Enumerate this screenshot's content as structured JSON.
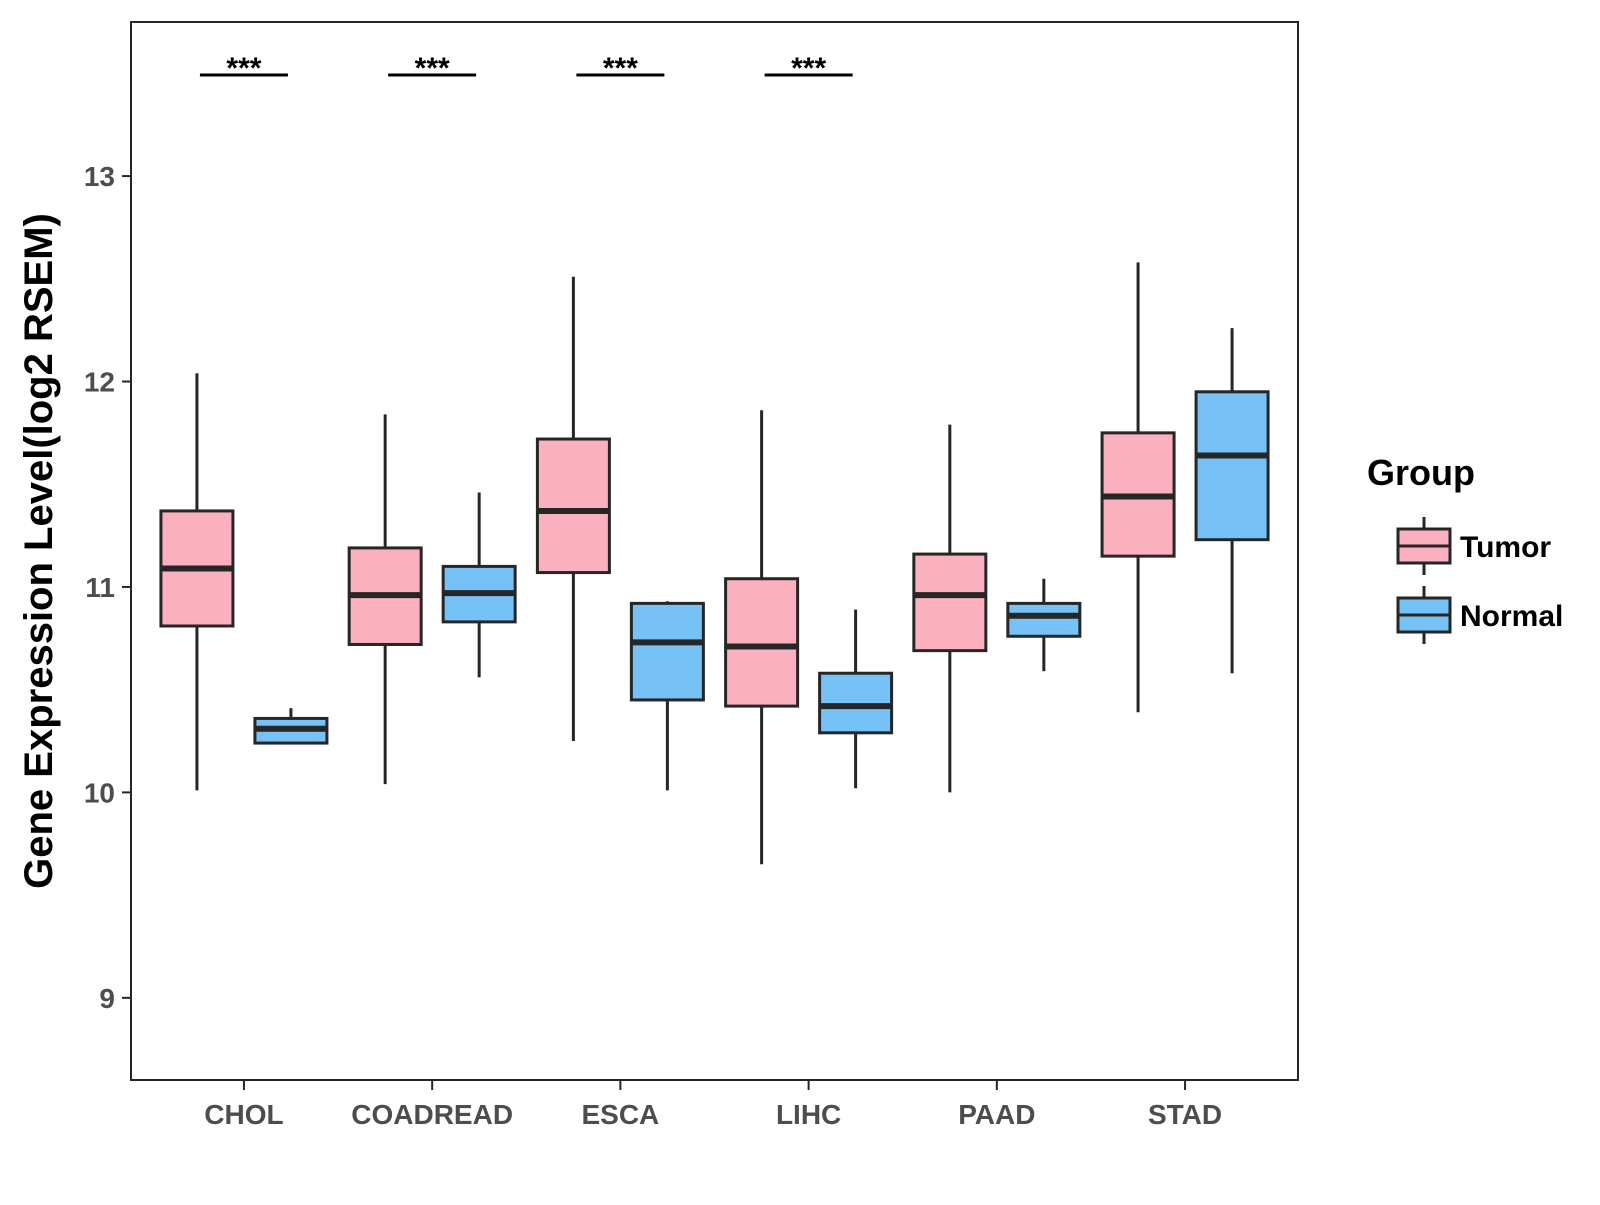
{
  "chart_data": {
    "type": "boxplot",
    "title": "",
    "xlabel": "",
    "ylabel": "Gene Expression Level(log2 RSEM)",
    "ylim": [
      8.6,
      13.75
    ],
    "yticks": [
      9,
      10,
      11,
      12,
      13
    ],
    "categories": [
      "CHOL",
      "COADREAD",
      "ESCA",
      "LIHC",
      "PAAD",
      "STAD"
    ],
    "legend": {
      "title": "Group",
      "position": "right"
    },
    "colors": {
      "Tumor": "#fbb0c0",
      "Normal": "#76c1f6",
      "outline": "#262626"
    },
    "series": [
      {
        "name": "Tumor",
        "boxes": [
          {
            "min": 10.01,
            "q1": 10.81,
            "median": 11.09,
            "q3": 11.37,
            "max": 12.04
          },
          {
            "min": 10.04,
            "q1": 10.72,
            "median": 10.96,
            "q3": 11.19,
            "max": 11.84
          },
          {
            "min": 10.25,
            "q1": 11.07,
            "median": 11.37,
            "q3": 11.72,
            "max": 12.51
          },
          {
            "min": 9.65,
            "q1": 10.42,
            "median": 10.71,
            "q3": 11.04,
            "max": 11.86
          },
          {
            "min": 10.0,
            "q1": 10.69,
            "median": 10.96,
            "q3": 11.16,
            "max": 11.79
          },
          {
            "min": 10.39,
            "q1": 11.15,
            "median": 11.44,
            "q3": 11.75,
            "max": 12.58
          }
        ]
      },
      {
        "name": "Normal",
        "boxes": [
          {
            "min": 10.24,
            "q1": 10.24,
            "median": 10.31,
            "q3": 10.36,
            "max": 10.41
          },
          {
            "min": 10.56,
            "q1": 10.83,
            "median": 10.97,
            "q3": 11.1,
            "max": 11.46
          },
          {
            "min": 10.01,
            "q1": 10.45,
            "median": 10.73,
            "q3": 10.92,
            "max": 10.93
          },
          {
            "min": 10.02,
            "q1": 10.29,
            "median": 10.42,
            "q3": 10.58,
            "max": 10.89
          },
          {
            "min": 10.59,
            "q1": 10.76,
            "median": 10.86,
            "q3": 10.92,
            "max": 11.04
          },
          {
            "min": 10.58,
            "q1": 11.23,
            "median": 11.64,
            "q3": 11.95,
            "max": 12.26
          }
        ]
      }
    ],
    "annotations": [
      {
        "category": "CHOL",
        "text": "***"
      },
      {
        "category": "COADREAD",
        "text": "***"
      },
      {
        "category": "ESCA",
        "text": "***"
      },
      {
        "category": "LIHC",
        "text": "***"
      }
    ]
  }
}
